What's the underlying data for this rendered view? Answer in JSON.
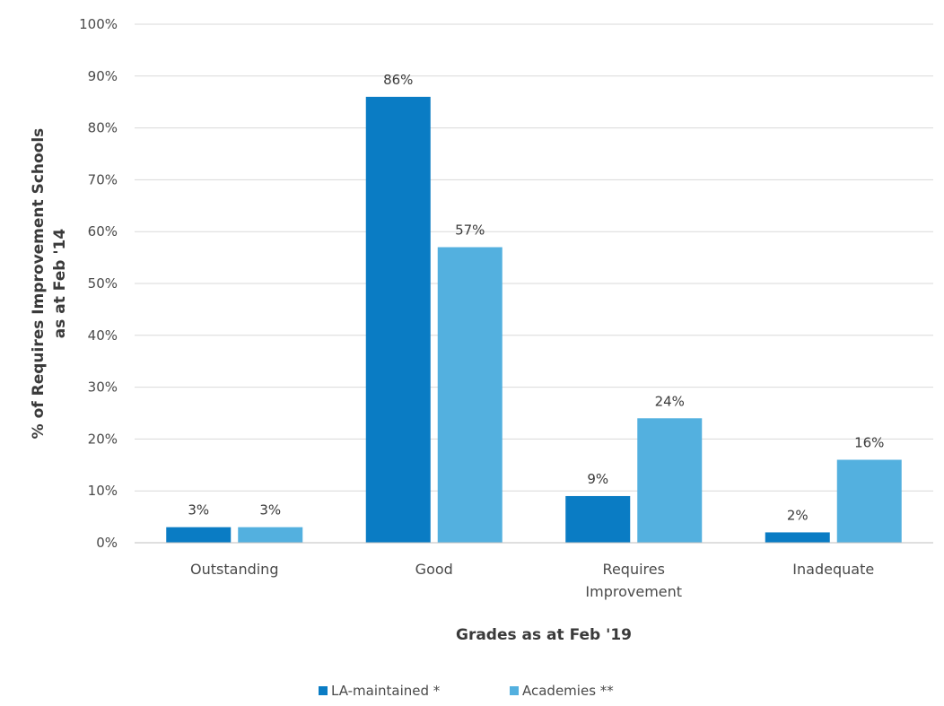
{
  "chart_data": {
    "type": "bar",
    "title": "",
    "categories": [
      [
        "Outstanding"
      ],
      [
        "Good"
      ],
      [
        "Requires",
        "Improvement"
      ],
      [
        "Inadequate"
      ]
    ],
    "series": [
      {
        "name": "LA-maintained *",
        "color": "#0a7cc4",
        "values": [
          3,
          86,
          9,
          2
        ],
        "labels": [
          "3%",
          "86%",
          "9%",
          "2%"
        ]
      },
      {
        "name": "Academies **",
        "color": "#53b0df",
        "values": [
          3,
          57,
          24,
          16
        ],
        "labels": [
          "3%",
          "57%",
          "24%",
          "16%"
        ]
      }
    ],
    "ylabel": [
      "% of Requires Improvement Schools",
      "as at Feb '14"
    ],
    "xlabel": "Grades as at Feb '19",
    "ylim": [
      0,
      100
    ],
    "yticks": [
      "0%",
      "10%",
      "20%",
      "30%",
      "40%",
      "50%",
      "60%",
      "70%",
      "80%",
      "90%",
      "100%"
    ],
    "grid": true,
    "legend_position": "bottom"
  }
}
